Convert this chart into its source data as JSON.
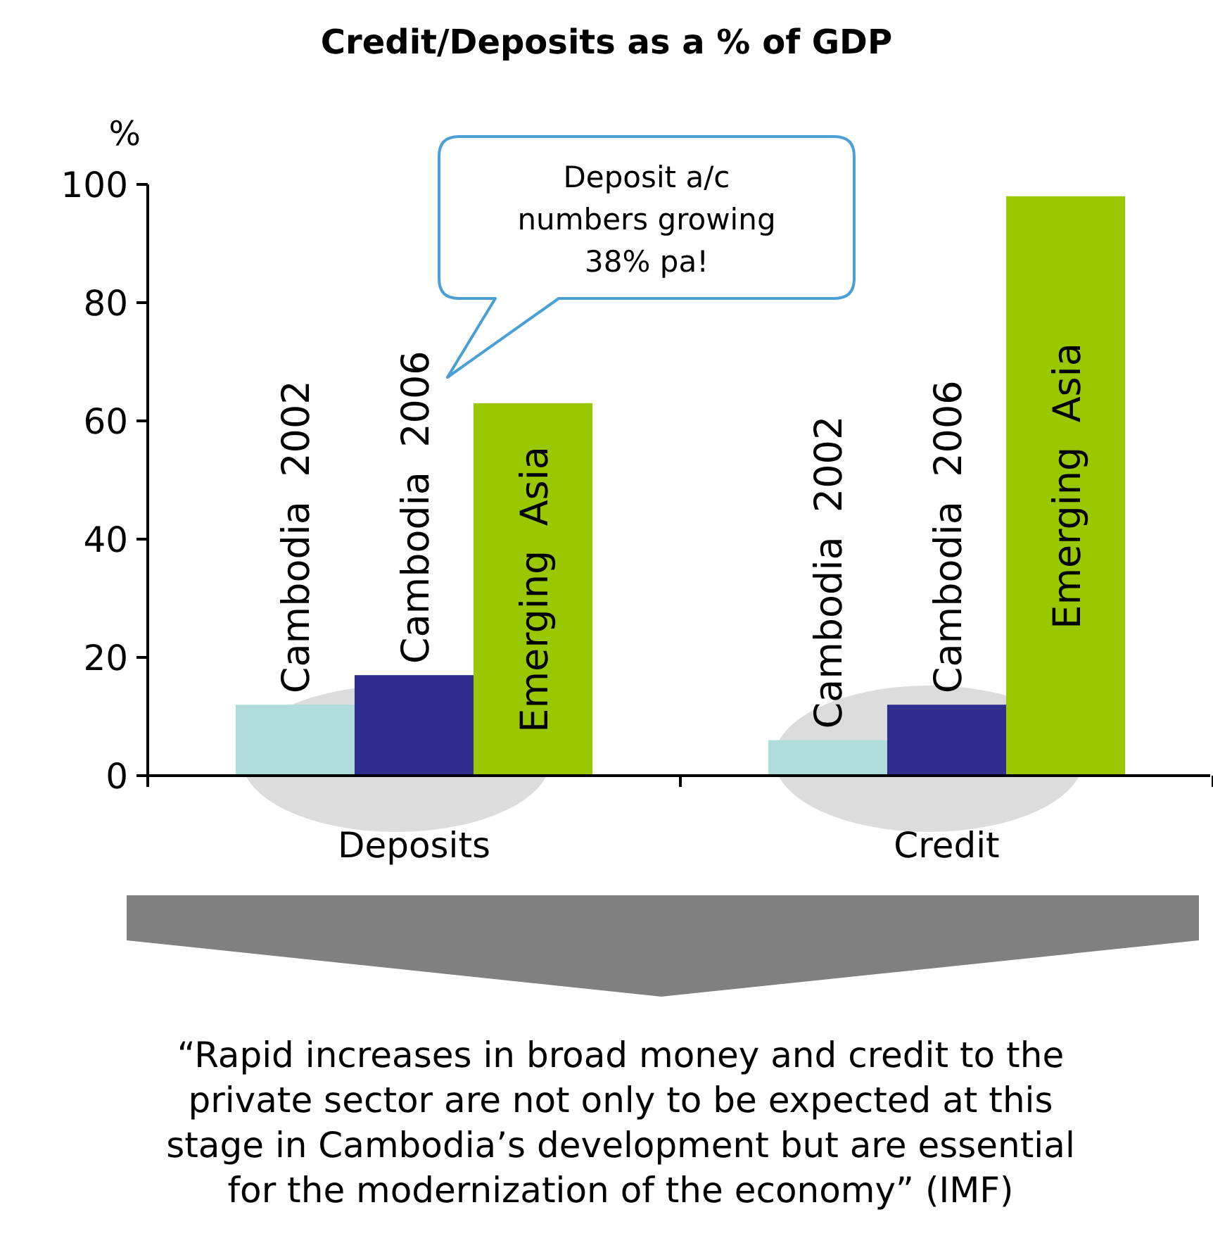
{
  "chart_data": {
    "type": "bar",
    "title": "Credit/Deposits as a % of GDP",
    "ylabel": "%",
    "categories": [
      "Deposits",
      "Credit"
    ],
    "series": [
      {
        "name": "Cambodia  2002",
        "color": "#b0dcdc",
        "values": [
          12,
          6
        ]
      },
      {
        "name": "Cambodia  2006",
        "color": "#2e2e8f",
        "values": [
          17,
          12
        ]
      },
      {
        "name": "Emerging  Asia",
        "color": "#99c800",
        "values": [
          63,
          98
        ]
      }
    ],
    "ylim": [
      0,
      100
    ],
    "yticks": [
      0,
      20,
      40,
      60,
      80,
      100
    ],
    "grid": false,
    "annotations": [
      "Deposit a/c numbers growing 38% pa!",
      "“Rapid increases in broad money and credit to the private sector are not only to be expected at this stage in Cambodia’s development but are essential for the modernization of the economy” (IMF)"
    ]
  }
}
